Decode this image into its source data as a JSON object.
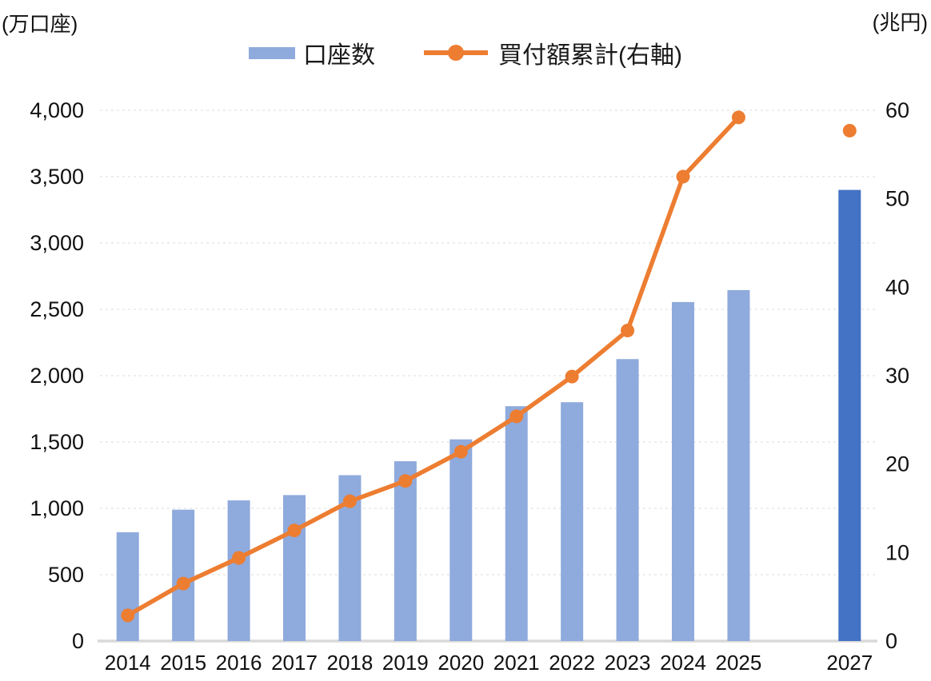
{
  "chart_data": {
    "type": "bar+line",
    "title": "",
    "categories": [
      "2014",
      "2015",
      "2016",
      "2017",
      "2018",
      "2019",
      "2020",
      "2021",
      "2022",
      "2023",
      "2024",
      "2025",
      "",
      "2027"
    ],
    "series": [
      {
        "name": "口座数",
        "type": "bar",
        "axis": "left",
        "values": [
          820,
          990,
          1060,
          1100,
          1250,
          1355,
          1520,
          1770,
          1800,
          2125,
          2555,
          2645,
          null,
          3400
        ],
        "color": "#8FAADC",
        "highlight_index": 13,
        "highlight_color": "#4472C4"
      },
      {
        "name": "買付額累計(右軸)",
        "type": "line",
        "axis": "right",
        "values": [
          2.9,
          6.5,
          9.4,
          12.5,
          15.8,
          18.1,
          21.4,
          25.4,
          29.9,
          35.1,
          52.5,
          59.2,
          null,
          57.7
        ],
        "color": "#ED7D31",
        "isolated_points": [
          13
        ]
      }
    ],
    "left_axis": {
      "unit_label": "(万口座)",
      "min": 0,
      "max": 4000,
      "step": 500,
      "tick_labels": [
        "0",
        "500",
        "1,000",
        "1,500",
        "2,000",
        "2,500",
        "3,000",
        "3,500",
        "4,000"
      ]
    },
    "right_axis": {
      "unit_label": "(兆円)",
      "min": 0,
      "max": 60,
      "step": 10,
      "tick_labels": [
        "0",
        "10",
        "20",
        "30",
        "40",
        "50",
        "60"
      ]
    },
    "legend_position": "top",
    "grid": "horizontal-dashed",
    "colors": {
      "gridline": "#E2E2E2",
      "axis_line": "#D9D9D9",
      "text": "#111111"
    }
  }
}
